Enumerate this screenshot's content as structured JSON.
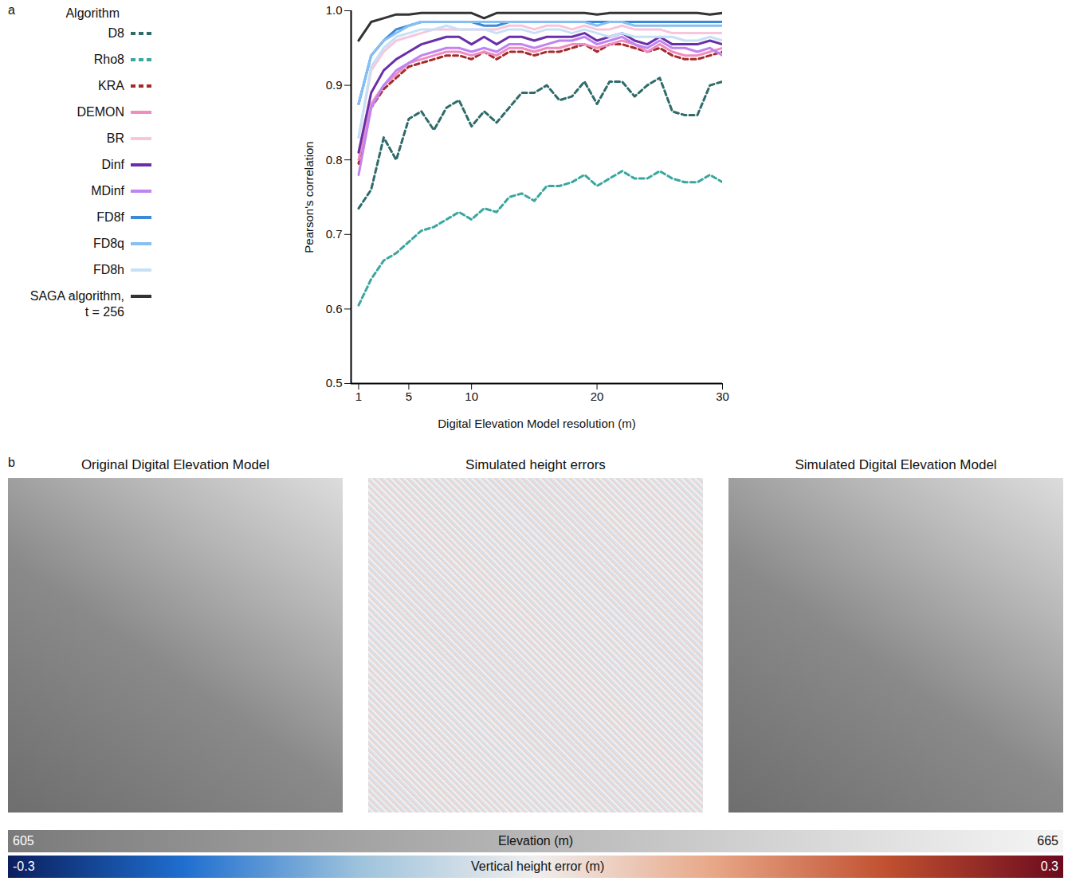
{
  "chart_data": {
    "type": "line",
    "panel_label": "a",
    "legend_title": "Algorithm",
    "legend": "left",
    "grid": false,
    "x_label": "Digital Elevation Model resolution (m)",
    "y_label": "Pearson's correlation",
    "xlim": [
      0.4,
      30
    ],
    "xticks": [
      1,
      5,
      10,
      20,
      30
    ],
    "ylim": [
      0.5,
      1.0
    ],
    "yticks": [
      0.5,
      0.6,
      0.7,
      0.8,
      0.9,
      {
        "value": 1.0,
        "label": "1.0"
      }
    ],
    "x": [
      1,
      2,
      3,
      4,
      5,
      6,
      7,
      8,
      9,
      10,
      11,
      12,
      13,
      14,
      15,
      16,
      17,
      18,
      19,
      20,
      21,
      22,
      23,
      24,
      25,
      26,
      27,
      28,
      29,
      30
    ],
    "series": [
      {
        "name": "D8",
        "color": "#2f6b6b",
        "line_style": "dashed",
        "values": [
          0.735,
          0.76,
          0.83,
          0.8,
          0.855,
          0.865,
          0.84,
          0.87,
          0.88,
          0.845,
          0.865,
          0.85,
          0.87,
          0.89,
          0.89,
          0.9,
          0.88,
          0.885,
          0.905,
          0.875,
          0.905,
          0.905,
          0.885,
          0.9,
          0.91,
          0.865,
          0.86,
          0.86,
          0.9,
          0.905
        ]
      },
      {
        "name": "Rho8",
        "color": "#3aa6a0",
        "line_style": "dashed",
        "values": [
          0.605,
          0.64,
          0.665,
          0.675,
          0.69,
          0.705,
          0.71,
          0.72,
          0.73,
          0.72,
          0.735,
          0.73,
          0.75,
          0.755,
          0.745,
          0.765,
          0.765,
          0.77,
          0.78,
          0.765,
          0.775,
          0.785,
          0.775,
          0.775,
          0.785,
          0.775,
          0.77,
          0.77,
          0.78,
          0.77
        ]
      },
      {
        "name": "KRA",
        "color": "#a52a2a",
        "line_style": "dashed",
        "values": [
          0.795,
          0.87,
          0.895,
          0.91,
          0.925,
          0.93,
          0.935,
          0.94,
          0.94,
          0.935,
          0.945,
          0.935,
          0.945,
          0.945,
          0.94,
          0.945,
          0.945,
          0.95,
          0.955,
          0.945,
          0.955,
          0.955,
          0.95,
          0.945,
          0.95,
          0.94,
          0.935,
          0.935,
          0.94,
          0.945
        ]
      },
      {
        "name": "DEMON",
        "color": "#f08cc0",
        "line_style": "solid",
        "values": [
          0.8,
          0.875,
          0.9,
          0.915,
          0.93,
          0.935,
          0.94,
          0.945,
          0.945,
          0.94,
          0.945,
          0.94,
          0.95,
          0.95,
          0.945,
          0.95,
          0.95,
          0.955,
          0.955,
          0.95,
          0.955,
          0.96,
          0.955,
          0.945,
          0.955,
          0.945,
          0.94,
          0.94,
          0.945,
          0.95
        ]
      },
      {
        "name": "BR",
        "color": "#f7c6dc",
        "line_style": "solid",
        "values": [
          0.83,
          0.92,
          0.945,
          0.96,
          0.965,
          0.97,
          0.975,
          0.975,
          0.975,
          0.975,
          0.975,
          0.975,
          0.98,
          0.98,
          0.975,
          0.98,
          0.98,
          0.975,
          0.98,
          0.975,
          0.975,
          0.98,
          0.975,
          0.975,
          0.975,
          0.97,
          0.97,
          0.97,
          0.97,
          0.97
        ]
      },
      {
        "name": "Dinf",
        "color": "#6a2fa8",
        "line_style": "solid",
        "values": [
          0.81,
          0.89,
          0.92,
          0.935,
          0.945,
          0.955,
          0.96,
          0.965,
          0.965,
          0.955,
          0.965,
          0.955,
          0.965,
          0.965,
          0.96,
          0.965,
          0.965,
          0.965,
          0.97,
          0.96,
          0.965,
          0.97,
          0.96,
          0.955,
          0.965,
          0.955,
          0.955,
          0.955,
          0.96,
          0.955
        ]
      },
      {
        "name": "MDinf",
        "color": "#c084f0",
        "line_style": "solid",
        "values": [
          0.78,
          0.87,
          0.9,
          0.92,
          0.93,
          0.94,
          0.945,
          0.95,
          0.95,
          0.945,
          0.95,
          0.945,
          0.955,
          0.955,
          0.95,
          0.955,
          0.96,
          0.96,
          0.965,
          0.955,
          0.96,
          0.965,
          0.955,
          0.95,
          0.96,
          0.95,
          0.95,
          0.945,
          0.95,
          0.94
        ]
      },
      {
        "name": "FD8f",
        "color": "#3a8ad8",
        "line_style": "solid",
        "values": [
          0.875,
          0.94,
          0.96,
          0.975,
          0.98,
          0.985,
          0.985,
          0.985,
          0.985,
          0.985,
          0.98,
          0.98,
          0.985,
          0.985,
          0.985,
          0.985,
          0.985,
          0.985,
          0.985,
          0.985,
          0.985,
          0.985,
          0.985,
          0.985,
          0.985,
          0.985,
          0.985,
          0.985,
          0.985,
          0.985
        ]
      },
      {
        "name": "FD8q",
        "color": "#86bff2",
        "line_style": "solid",
        "values": [
          0.875,
          0.94,
          0.96,
          0.97,
          0.98,
          0.985,
          0.985,
          0.985,
          0.985,
          0.985,
          0.985,
          0.985,
          0.985,
          0.985,
          0.985,
          0.985,
          0.985,
          0.985,
          0.985,
          0.98,
          0.985,
          0.985,
          0.98,
          0.98,
          0.98,
          0.98,
          0.98,
          0.98,
          0.98,
          0.98
        ]
      },
      {
        "name": "FD8h",
        "color": "#c6e0f6",
        "line_style": "solid",
        "values": [
          0.83,
          0.925,
          0.95,
          0.965,
          0.97,
          0.975,
          0.975,
          0.98,
          0.975,
          0.975,
          0.975,
          0.97,
          0.975,
          0.975,
          0.97,
          0.975,
          0.975,
          0.97,
          0.975,
          0.97,
          0.965,
          0.97,
          0.965,
          0.965,
          0.965,
          0.965,
          0.96,
          0.96,
          0.965,
          0.96
        ]
      },
      {
        "name": "SAGA algorithm, t = 256",
        "color": "#333333",
        "line_style": "solid",
        "values": [
          0.96,
          0.985,
          0.99,
          0.995,
          0.995,
          0.997,
          0.997,
          0.997,
          0.997,
          0.997,
          0.99,
          0.997,
          0.997,
          0.997,
          0.997,
          0.997,
          0.997,
          0.997,
          0.997,
          0.995,
          0.997,
          0.997,
          0.997,
          0.997,
          0.997,
          0.997,
          0.997,
          0.997,
          0.995,
          0.997
        ]
      }
    ]
  },
  "panel_b": {
    "label": "b",
    "images": [
      {
        "title": "Original Digital Elevation Model"
      },
      {
        "title": "Simulated height errors"
      },
      {
        "title": "Simulated Digital Elevation Model"
      }
    ],
    "colorbars": [
      {
        "label": "Elevation (m)",
        "range": [
          605,
          665
        ],
        "colors": [
          "#7a7a7a",
          "#f5f5f5"
        ]
      },
      {
        "label": "Vertical height error (m)",
        "range": [
          -0.3,
          0.3
        ],
        "colors": [
          "#0b1f5e",
          "#1f6fd0",
          "#9ec3dc",
          "#f0eeee",
          "#e8a888",
          "#c05030",
          "#6b0a1e"
        ]
      }
    ]
  }
}
